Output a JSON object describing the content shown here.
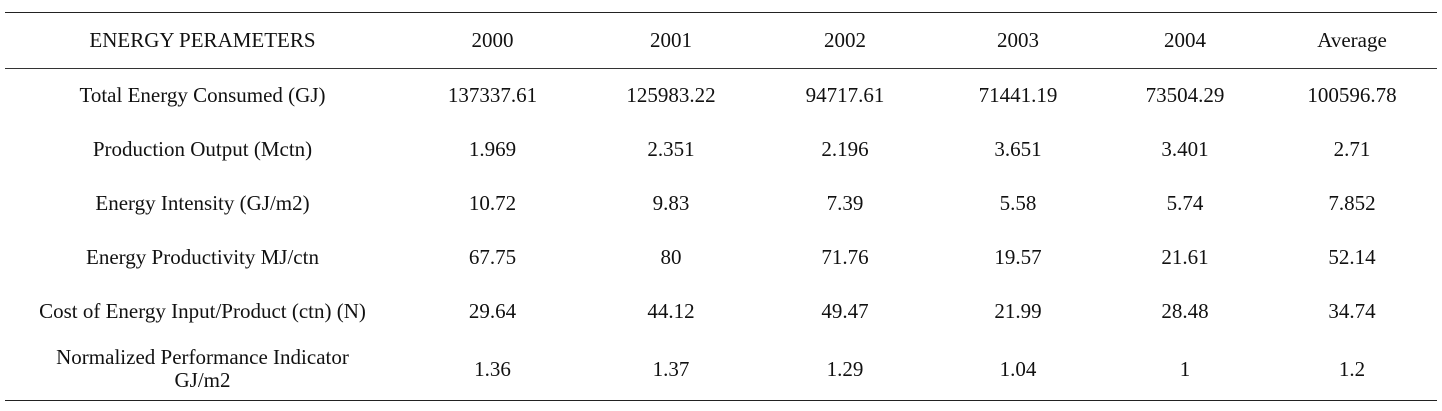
{
  "table": {
    "headers": [
      "ENERGY PERAMETERS",
      "2000",
      "2001",
      "2002",
      "2003",
      "2004",
      "Average"
    ],
    "rows": [
      {
        "label": "Total Energy Consumed (GJ)",
        "values": [
          "137337.61",
          "125983.22",
          "94717.61",
          "71441.19",
          "73504.29",
          "100596.78"
        ]
      },
      {
        "label": "Production Output (Mctn)",
        "values": [
          "1.969",
          "2.351",
          "2.196",
          "3.651",
          "3.401",
          "2.71"
        ]
      },
      {
        "label": "Energy Intensity (GJ/m2)",
        "values": [
          "10.72",
          "9.83",
          "7.39",
          "5.58",
          "5.74",
          "7.852"
        ]
      },
      {
        "label": "Energy Productivity MJ/ctn",
        "values": [
          "67.75",
          "80",
          "71.76",
          "19.57",
          "21.61",
          "52.14"
        ]
      },
      {
        "label": "Cost of Energy Input/Product (ctn) (N)",
        "values": [
          "29.64",
          "44.12",
          "49.47",
          "21.99",
          "28.48",
          "34.74"
        ]
      },
      {
        "label": "Normalized Performance Indicator GJ/m2",
        "label_line1": "Normalized Performance Indicator",
        "label_line2": "GJ/m2",
        "values": [
          "1.36",
          "1.37",
          "1.29",
          "1.04",
          "1",
          "1.2"
        ]
      }
    ]
  }
}
